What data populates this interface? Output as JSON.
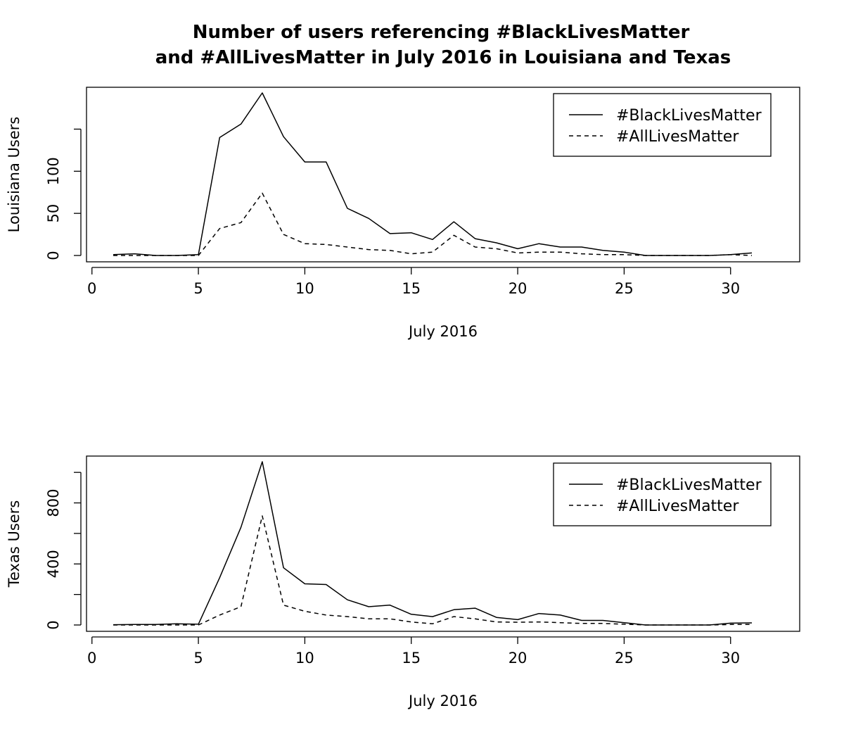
{
  "title_lines": [
    "Number of users referencing #BlackLivesMatter",
    "and #AllLivesMatter in July 2016 in Louisiana and Texas"
  ],
  "chart_data": [
    {
      "type": "line",
      "xlabel": "July 2016",
      "ylabel": "Louisiana Users",
      "xlim": [
        0,
        32
      ],
      "ylim": [
        0,
        155
      ],
      "x_ticks": [
        0,
        5,
        10,
        15,
        20,
        25,
        30
      ],
      "y_ticks": [
        0,
        50,
        100,
        150
      ],
      "y_tick_labels": [
        "0",
        "50",
        "100",
        ""
      ],
      "legend_position": "top-right",
      "grid": false,
      "x": [
        1,
        2,
        3,
        4,
        5,
        6,
        7,
        8,
        9,
        10,
        11,
        12,
        13,
        14,
        15,
        16,
        17,
        18,
        19,
        20,
        21,
        22,
        23,
        24,
        25,
        26,
        27,
        28,
        29,
        30,
        31
      ],
      "series": [
        {
          "name": "#BlackLivesMatter",
          "line_style": "solid",
          "color": "#000000",
          "values": [
            1,
            2,
            0,
            0,
            1,
            140,
            156,
            193,
            141,
            111,
            111,
            56,
            44,
            26,
            27,
            19,
            40,
            20,
            15,
            8,
            14,
            10,
            10,
            6,
            4,
            0,
            0,
            0,
            0,
            1,
            3
          ]
        },
        {
          "name": "#AllLivesMatter",
          "line_style": "dashed",
          "color": "#000000",
          "values": [
            0,
            0,
            0,
            0,
            0,
            32,
            39,
            74,
            25,
            14,
            13,
            10,
            7,
            6,
            2,
            4,
            24,
            10,
            8,
            3,
            4,
            4,
            2,
            1,
            1,
            0,
            0,
            0,
            0,
            1,
            0
          ]
        }
      ]
    },
    {
      "type": "line",
      "xlabel": "July 2016",
      "ylabel": "Texas Users",
      "xlim": [
        0,
        32
      ],
      "ylim": [
        0,
        1100
      ],
      "x_ticks": [
        0,
        5,
        10,
        15,
        20,
        25,
        30
      ],
      "y_ticks": [
        0,
        200,
        400,
        600,
        800,
        1000
      ],
      "y_tick_labels": [
        "0",
        "",
        "400",
        "",
        "800",
        ""
      ],
      "legend_position": "top-right",
      "grid": false,
      "x": [
        1,
        2,
        3,
        4,
        5,
        6,
        7,
        8,
        9,
        10,
        11,
        12,
        13,
        14,
        15,
        16,
        17,
        18,
        19,
        20,
        21,
        22,
        23,
        24,
        25,
        26,
        27,
        28,
        29,
        30,
        31
      ],
      "series": [
        {
          "name": "#BlackLivesMatter",
          "line_style": "solid",
          "color": "#000000",
          "values": [
            2,
            3,
            3,
            8,
            5,
            310,
            640,
            1070,
            375,
            270,
            265,
            165,
            120,
            130,
            70,
            55,
            100,
            110,
            50,
            35,
            75,
            65,
            30,
            30,
            15,
            0,
            0,
            0,
            0,
            12,
            14
          ]
        },
        {
          "name": "#AllLivesMatter",
          "line_style": "dashed",
          "color": "#000000",
          "values": [
            0,
            0,
            0,
            0,
            0,
            65,
            120,
            715,
            130,
            90,
            65,
            55,
            40,
            40,
            20,
            8,
            55,
            40,
            20,
            18,
            20,
            15,
            10,
            10,
            5,
            0,
            0,
            0,
            0,
            3,
            3
          ]
        }
      ]
    }
  ]
}
